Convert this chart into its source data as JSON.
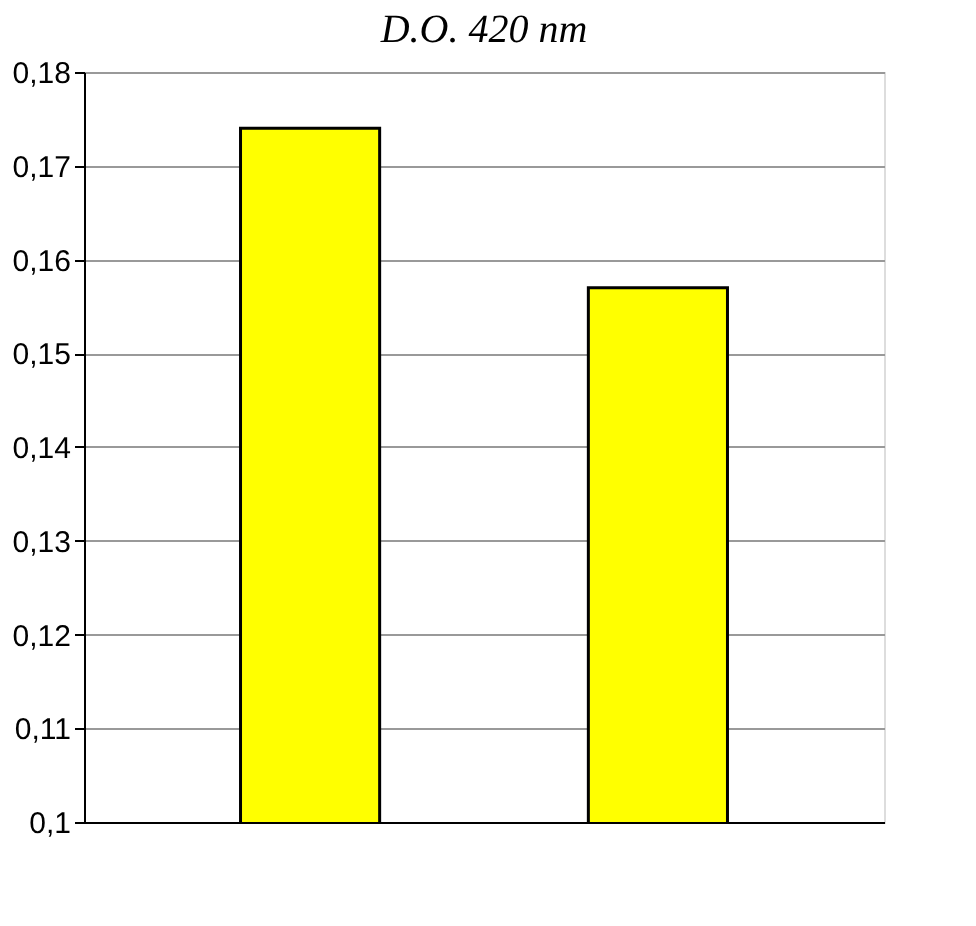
{
  "chart_data": {
    "type": "bar",
    "title": "D.O. 420 nm",
    "categories": [
      null,
      null
    ],
    "values": [
      0.174,
      0.157
    ],
    "color": "#ffff00",
    "ylim": [
      0.1,
      0.18
    ],
    "yticks": [
      {
        "value": 0.1,
        "label": "0,1"
      },
      {
        "value": 0.11,
        "label": "0,11"
      },
      {
        "value": 0.12,
        "label": "0,12"
      },
      {
        "value": 0.13,
        "label": "0,13"
      },
      {
        "value": 0.14,
        "label": "0,14"
      },
      {
        "value": 0.15,
        "label": "0,15"
      },
      {
        "value": 0.16,
        "label": "0,16"
      },
      {
        "value": 0.17,
        "label": "0,17"
      },
      {
        "value": 0.18,
        "label": "0,18"
      }
    ],
    "grid": "y",
    "tick_labels": "y"
  }
}
